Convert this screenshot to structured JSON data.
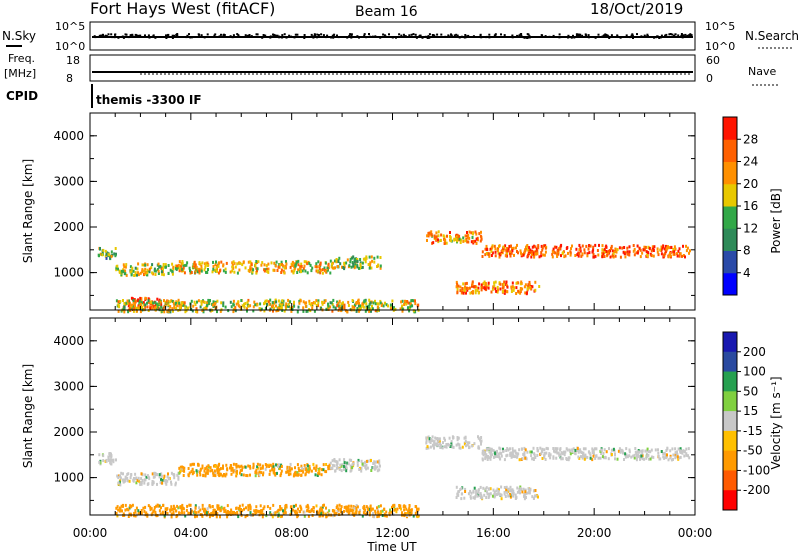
{
  "header": {
    "radar": "Fort Hays West (fitACF)",
    "beam": "Beam 16",
    "date": "18/Oct/2019",
    "cpid_label": "CPID",
    "cpid_value": "themis -3300 IF"
  },
  "top_panels": {
    "nsky_label": "N.Sky",
    "nsky_ticks": [
      "10^5",
      "10^0"
    ],
    "nsearch_label": "N.Search",
    "nsearch_ticks": [
      "10^5",
      "10^0"
    ],
    "freq_label": "Freq.",
    "freq_unit": "[MHz]",
    "freq_ticks": [
      "18",
      "8"
    ],
    "nave_label": "Nave",
    "nave_ticks": [
      "60",
      "0"
    ]
  },
  "colors": {
    "power_scale": [
      "#0000ff",
      "#2a4aa8",
      "#2e8a58",
      "#32a848",
      "#e8c800",
      "#ff9000",
      "#ff6000",
      "#ff1400"
    ],
    "velocity_scale": [
      "#1818b0",
      "#2a4aa0",
      "#26a050",
      "#80d040",
      "#c8c8c8",
      "#ffc000",
      "#ff9a00",
      "#ff5a00",
      "#ff0000"
    ]
  },
  "chart_data": [
    {
      "type": "heatmap",
      "title": "",
      "xlabel": "Time UT",
      "ylabel": "Slant Range [km]",
      "colorbar_label": "Power [dB]",
      "colorbar_ticks": [
        "28",
        "24",
        "20",
        "16",
        "12",
        "8",
        "4"
      ],
      "x_ticks": [
        "00:00",
        "04:00",
        "08:00",
        "12:00",
        "16:00",
        "20:00",
        "00:00"
      ],
      "y_ticks": [
        "4000",
        "3000",
        "2000",
        "1000"
      ],
      "xlim_hours": [
        0,
        24
      ],
      "ylim_km": [
        180,
        4500
      ],
      "echo_regions": [
        {
          "t_start": 0.3,
          "t_end": 1.0,
          "range_km": 1450,
          "power_db": 14
        },
        {
          "t_start": 1.0,
          "t_end": 3.5,
          "range_km": 1100,
          "power_db": 18
        },
        {
          "t_start": 3.5,
          "t_end": 9.5,
          "range_km": 1150,
          "power_db": 20
        },
        {
          "t_start": 9.5,
          "t_end": 11.5,
          "range_km": 1250,
          "power_db": 16
        },
        {
          "t_start": 1.5,
          "t_end": 2.8,
          "range_km": 350,
          "power_db": 28
        },
        {
          "t_start": 1.0,
          "t_end": 13.0,
          "range_km": 300,
          "power_db": 18
        },
        {
          "t_start": 13.3,
          "t_end": 15.5,
          "range_km": 1800,
          "power_db": 22
        },
        {
          "t_start": 14.5,
          "t_end": 17.8,
          "range_km": 700,
          "power_db": 24
        },
        {
          "t_start": 15.5,
          "t_end": 23.8,
          "range_km": 1500,
          "power_db": 26
        }
      ]
    },
    {
      "type": "heatmap",
      "title": "",
      "xlabel": "Time UT",
      "ylabel": "Slant Range [km]",
      "colorbar_label": "Velocity [m s⁻¹]",
      "colorbar_ticks": [
        "200",
        "100",
        "50",
        "15",
        "-15",
        "-50",
        "-100",
        "-200"
      ],
      "x_ticks": [
        "00:00",
        "04:00",
        "08:00",
        "12:00",
        "16:00",
        "20:00",
        "00:00"
      ],
      "y_ticks": [
        "4000",
        "3000",
        "2000",
        "1000"
      ],
      "xlim_hours": [
        0,
        24
      ],
      "ylim_km": [
        180,
        4500
      ],
      "echo_regions": [
        {
          "t_start": 0.3,
          "t_end": 1.0,
          "range_km": 1450,
          "velocity_ms": 0
        },
        {
          "t_start": 1.0,
          "t_end": 3.5,
          "range_km": 1000,
          "velocity_ms": 0
        },
        {
          "t_start": 3.5,
          "t_end": 9.5,
          "range_km": 1200,
          "velocity_ms": -40
        },
        {
          "t_start": 9.5,
          "t_end": 11.5,
          "range_km": 1300,
          "velocity_ms": 0
        },
        {
          "t_start": 1.0,
          "t_end": 13.0,
          "range_km": 300,
          "velocity_ms": -40
        },
        {
          "t_start": 13.3,
          "t_end": 15.5,
          "range_km": 1800,
          "velocity_ms": 0
        },
        {
          "t_start": 14.5,
          "t_end": 17.8,
          "range_km": 700,
          "velocity_ms": 0
        },
        {
          "t_start": 15.5,
          "t_end": 23.8,
          "range_km": 1550,
          "velocity_ms": 0
        }
      ]
    }
  ]
}
